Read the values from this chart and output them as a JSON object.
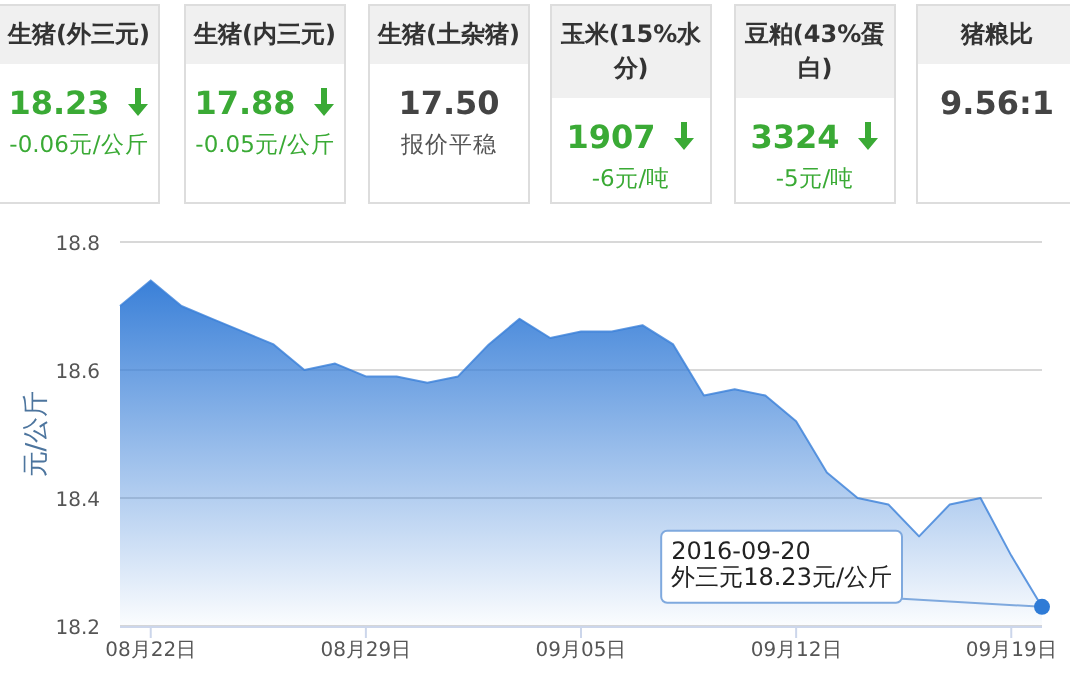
{
  "chart_data": [
    {
      "type": "other",
      "categories": [
        "生猪(外三元)",
        "生猪(内三元)",
        "生猪(土杂猪)",
        "玉米(15%水分)",
        "豆粕(43%蛋白)",
        "猪粮比"
      ],
      "annotations": [
        {
          "text": "18.23",
          "x": "生猪(外三元)"
        },
        {
          "text": "-0.06元/公斤",
          "x": "生猪(外三元)"
        },
        {
          "text": "17.88",
          "x": "生猪(内三元)"
        },
        {
          "text": "-0.05元/公斤",
          "x": "生猪(内三元)"
        },
        {
          "text": "17.50",
          "x": "生猪(土杂猪)"
        },
        {
          "text": "报价平稳",
          "x": "生猪(土杂猪)"
        },
        {
          "text": "1907",
          "x": "玉米(15%水分)"
        },
        {
          "text": "-6元/吨",
          "x": "玉米(15%水分)"
        },
        {
          "text": "3324",
          "x": "豆粕(43%蛋白)"
        },
        {
          "text": "-5元/吨",
          "x": "豆粕(43%蛋白)"
        },
        {
          "text": "9.56:1",
          "x": "猪粮比"
        }
      ]
    },
    {
      "type": "area",
      "ylabel": "元/公斤",
      "grid": "y",
      "x": [
        "2016-08-21",
        "2016-08-22",
        "2016-08-23",
        "2016-08-24",
        "2016-08-25",
        "2016-08-26",
        "2016-08-27",
        "2016-08-28",
        "2016-08-29",
        "2016-08-30",
        "2016-08-31",
        "2016-09-01",
        "2016-09-02",
        "2016-09-03",
        "2016-09-04",
        "2016-09-05",
        "2016-09-06",
        "2016-09-07",
        "2016-09-08",
        "2016-09-09",
        "2016-09-10",
        "2016-09-11",
        "2016-09-12",
        "2016-09-13",
        "2016-09-14",
        "2016-09-15",
        "2016-09-16",
        "2016-09-17",
        "2016-09-18",
        "2016-09-19",
        "2016-09-20"
      ],
      "series": [
        {
          "color": "#3a80d8",
          "values": [
            18.7,
            18.74,
            18.7,
            18.68,
            18.66,
            18.64,
            18.6,
            18.61,
            18.59,
            18.59,
            18.58,
            18.59,
            18.64,
            18.68,
            18.65,
            18.66,
            18.66,
            18.67,
            18.64,
            18.56,
            18.57,
            18.56,
            18.52,
            18.44,
            18.4,
            18.39,
            18.34,
            18.39,
            18.4,
            18.31,
            18.23
          ]
        }
      ],
      "xlim": [
        "2016-08-21",
        "2016-09-20"
      ],
      "xticks": [
        {
          "value": "2016-08-22",
          "label": "08月22日"
        },
        {
          "value": "2016-08-29",
          "label": "08月29日"
        },
        {
          "value": "2016-09-05",
          "label": "09月05日"
        },
        {
          "value": "2016-09-12",
          "label": "09月12日"
        },
        {
          "value": "2016-09-19",
          "label": "09月19日"
        }
      ],
      "ylim": [
        18.2,
        18.8
      ],
      "yticks": [
        18.2,
        18.4,
        18.6,
        18.8
      ],
      "annotations": [
        {
          "text": "2016-09-20\n外三元18.23元/公斤",
          "x": "2016-09-20",
          "y": 18.23
        }
      ]
    }
  ]
}
